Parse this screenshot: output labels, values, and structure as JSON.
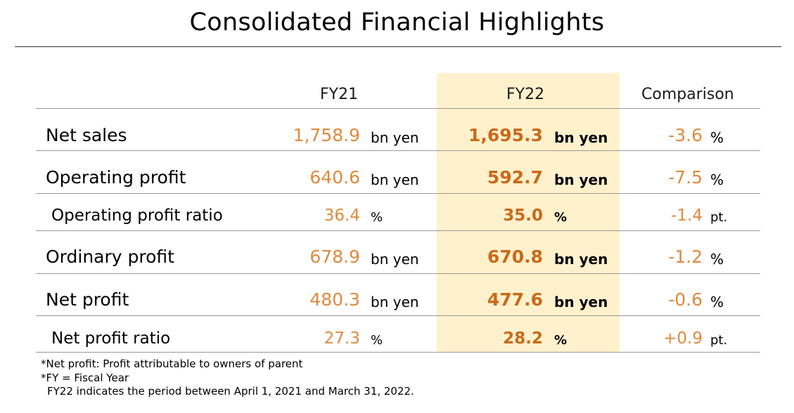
{
  "title": "Consolidated Financial Highlights",
  "columns": {
    "fy21": "FY21",
    "fy22": "FY22",
    "comparison": "Comparison"
  },
  "rows": [
    {
      "label": "Net sales",
      "fy21_value": "1,758.9",
      "fy21_unit": "bn yen",
      "fy22_value": "1,695.3",
      "fy22_unit": "bn yen",
      "cmp_value": "-3.6",
      "cmp_unit": "%"
    },
    {
      "label": "Operating profit",
      "fy21_value": "640.6",
      "fy21_unit": "bn yen",
      "fy22_value": "592.7",
      "fy22_unit": "bn yen",
      "cmp_value": "-7.5",
      "cmp_unit": "%"
    },
    {
      "label": "Operating profit ratio",
      "fy21_value": "36.4",
      "fy21_unit": "%",
      "fy22_value": "35.0",
      "fy22_unit": "%",
      "cmp_value": "-1.4",
      "cmp_unit": "pt."
    },
    {
      "label": "Ordinary profit",
      "fy21_value": "678.9",
      "fy21_unit": "bn yen",
      "fy22_value": "670.8",
      "fy22_unit": "bn yen",
      "cmp_value": "-1.2",
      "cmp_unit": "%"
    },
    {
      "label": "Net profit",
      "fy21_value": "480.3",
      "fy21_unit": "bn yen",
      "fy22_value": "477.6",
      "fy22_unit": "bn yen",
      "cmp_value": "-0.6",
      "cmp_unit": "%"
    },
    {
      "label": "Net profit ratio",
      "fy21_value": "27.3",
      "fy21_unit": "%",
      "fy22_value": "28.2",
      "fy22_unit": "%",
      "cmp_value": "+0.9",
      "cmp_unit": "pt."
    }
  ],
  "notes": [
    "*Net profit: Profit attributable to owners of parent",
    "*FY = Fiscal Year",
    "FY22 indicates the period between April 1, 2021 and March 31, 2022."
  ],
  "colors": {
    "highlight": "#FFF1CC",
    "fy21_value": "#E08A3C",
    "fy22_value": "#C86A1A",
    "comparison_value": "#E08A3C"
  }
}
